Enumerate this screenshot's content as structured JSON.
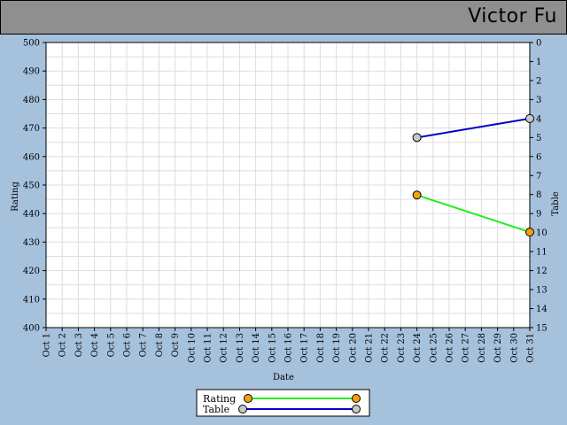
{
  "header": {
    "title": "Victor Fu"
  },
  "colors": {
    "rating": "#22ee22",
    "table": "#0000cc",
    "rating_marker": "#f5a00a",
    "table_marker": "#c8c8c8",
    "background": "#a6c1dc"
  },
  "chart_data": {
    "type": "line",
    "xlabel": "Date",
    "ylabel": "Rating",
    "y2label": "Table",
    "x": [
      "Oct 1",
      "Oct 2",
      "Oct 3",
      "Oct 4",
      "Oct 5",
      "Oct 6",
      "Oct 7",
      "Oct 8",
      "Oct 9",
      "Oct 10",
      "Oct 11",
      "Oct 12",
      "Oct 13",
      "Oct 14",
      "Oct 15",
      "Oct 16",
      "Oct 17",
      "Oct 18",
      "Oct 19",
      "Oct 20",
      "Oct 21",
      "Oct 22",
      "Oct 23",
      "Oct 24",
      "Oct 25",
      "Oct 26",
      "Oct 27",
      "Oct 28",
      "Oct 29",
      "Oct 30",
      "Oct 31"
    ],
    "ylim": [
      400,
      500
    ],
    "yticks": [
      400,
      410,
      420,
      430,
      440,
      450,
      460,
      470,
      480,
      490,
      500
    ],
    "y2lim": [
      0,
      15
    ],
    "y2ticks": [
      0,
      1,
      2,
      3,
      4,
      5,
      6,
      7,
      8,
      9,
      10,
      11,
      12,
      13,
      14,
      15
    ],
    "y2_inverted": true,
    "grid": true,
    "legend_position": "bottom-center",
    "series": [
      {
        "name": "Rating",
        "axis": "left",
        "points": [
          {
            "x": "Oct 24",
            "y": 446.5
          },
          {
            "x": "Oct 31",
            "y": 433.5
          }
        ]
      },
      {
        "name": "Table",
        "axis": "right",
        "points": [
          {
            "x": "Oct 24",
            "y": 5
          },
          {
            "x": "Oct 31",
            "y": 4
          }
        ]
      }
    ]
  }
}
